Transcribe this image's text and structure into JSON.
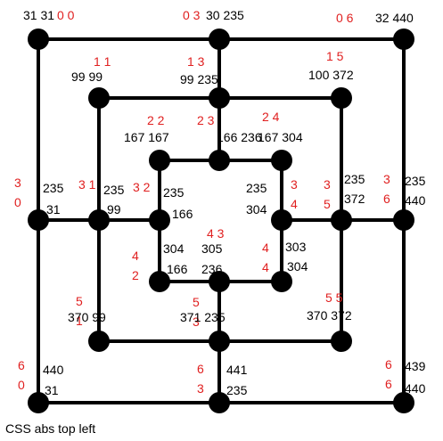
{
  "colors": {
    "ink": "#000000",
    "accent": "#e02020",
    "background": "#ffffff"
  },
  "caption": "CSS abs top left",
  "nodes": [
    {
      "id": "0-0",
      "index": "0 0",
      "coords": "31 31"
    },
    {
      "id": "0-3",
      "index": "0 3",
      "coords": "30 235"
    },
    {
      "id": "0-6",
      "index": "0 6",
      "coords": "32 440"
    },
    {
      "id": "1-1",
      "index": "1 1",
      "coords": "99 99"
    },
    {
      "id": "1-3",
      "index": "1 3",
      "coords": "99 235"
    },
    {
      "id": "1-5",
      "index": "1 5",
      "coords": "100 372"
    },
    {
      "id": "2-2",
      "index": "2 2",
      "coords": "167 167"
    },
    {
      "id": "2-3",
      "index": "2 3",
      "coords": "166 236"
    },
    {
      "id": "2-4",
      "index": "2 4",
      "coords": "167 304"
    },
    {
      "id": "3-0",
      "index": "3 0",
      "coords": "235 31"
    },
    {
      "id": "3-1",
      "index": "3 1",
      "coords": "235 99"
    },
    {
      "id": "3-2",
      "index": "3 2",
      "coords": "235 166"
    },
    {
      "id": "3-4",
      "index": "3 4",
      "coords": "235 304"
    },
    {
      "id": "3-5",
      "index": "3 5",
      "coords": "235 372"
    },
    {
      "id": "3-6",
      "index": "3 6",
      "coords": "235 440"
    },
    {
      "id": "4-2",
      "index": "4 2",
      "coords": "304 166"
    },
    {
      "id": "4-3",
      "index": "4 3",
      "coords": "305 236"
    },
    {
      "id": "4-4",
      "index": "4 4",
      "coords": "303 304"
    },
    {
      "id": "5-1",
      "index": "5 1",
      "coords": "370 99"
    },
    {
      "id": "5-3",
      "index": "5 3",
      "coords": "371 235"
    },
    {
      "id": "5-5",
      "index": "5 5",
      "coords": "370 372"
    },
    {
      "id": "6-0",
      "index": "6 0",
      "coords": "440 31"
    },
    {
      "id": "6-3",
      "index": "6 3",
      "coords": "441 235"
    },
    {
      "id": "6-6",
      "index": "6 6",
      "coords": "439 440"
    }
  ]
}
